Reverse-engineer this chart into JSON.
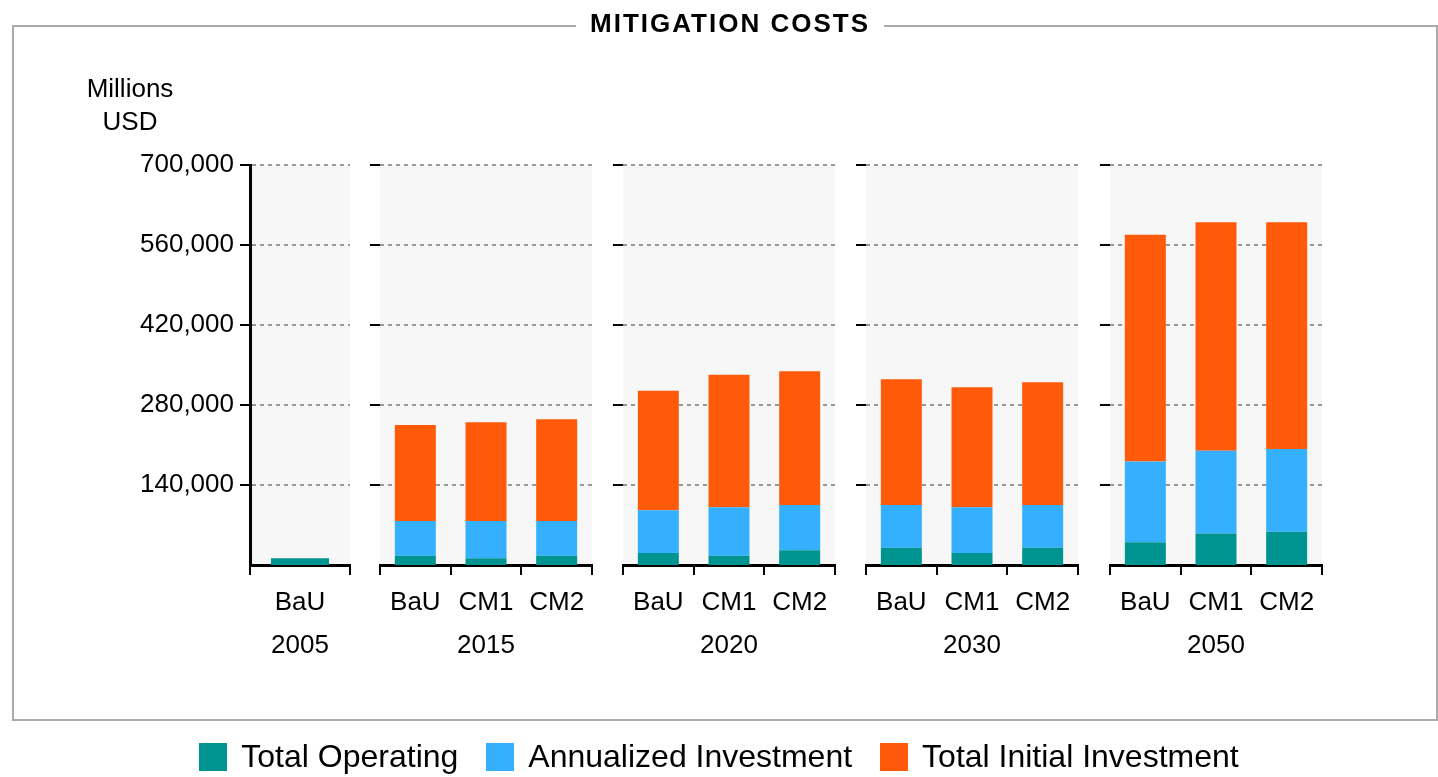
{
  "chart_data": [
    {
      "type": "bar",
      "ylabel": "Millions USD",
      "xlabel": "2005",
      "categories": [
        "BaU"
      ],
      "stacked": true,
      "ylim": [
        0,
        700000
      ],
      "yticks": [
        {
          "value": 140000,
          "label": "140,000"
        },
        {
          "value": 280000,
          "label": "280,000"
        },
        {
          "value": 420000,
          "label": "420,000"
        },
        {
          "value": 560000,
          "label": "560,000"
        },
        {
          "value": 700000,
          "label": "700,000"
        }
      ],
      "grid": "y",
      "legend": "bottom",
      "series": [
        {
          "name": "Total Operating",
          "color": "#009490",
          "values": [
            12000
          ]
        },
        {
          "name": "Annualized Investment",
          "color": "#35b0ff",
          "values": [
            null
          ]
        },
        {
          "name": "Total Initial Investment",
          "color": "#ff5a0a",
          "values": [
            null
          ]
        }
      ]
    },
    {
      "type": "bar",
      "xlabel": "2015",
      "categories": [
        "BaU",
        "CM1",
        "CM2"
      ],
      "stacked": true,
      "ylim": [
        0,
        700000
      ],
      "yticks": [
        {
          "value": 140000,
          "label": null
        },
        {
          "value": 280000,
          "label": null
        },
        {
          "value": 420000,
          "label": null
        },
        {
          "value": 560000,
          "label": null
        },
        {
          "value": 700000,
          "label": null
        }
      ],
      "grid": "y",
      "tick_labels": "x",
      "series": [
        {
          "color": "#009490",
          "values": [
            16000,
            12000,
            16000
          ]
        },
        {
          "color": "#35b0ff",
          "values": [
            61000,
            65000,
            61000
          ]
        },
        {
          "color": "#ff5a0a",
          "values": [
            168000,
            173000,
            178000
          ]
        }
      ]
    },
    {
      "type": "bar",
      "title": "MITIGATION COSTS",
      "xlabel": "2020",
      "categories": [
        "BaU",
        "CM1",
        "CM2"
      ],
      "stacked": true,
      "ylim": [
        0,
        700000
      ],
      "yticks": [
        {
          "value": 140000,
          "label": null
        },
        {
          "value": 280000,
          "label": null
        },
        {
          "value": 420000,
          "label": null
        },
        {
          "value": 560000,
          "label": null
        },
        {
          "value": 700000,
          "label": null
        }
      ],
      "grid": "y",
      "tick_labels": "x",
      "series": [
        {
          "color": "#009490",
          "values": [
            21000,
            16000,
            26000
          ]
        },
        {
          "color": "#35b0ff",
          "values": [
            75000,
            85000,
            79000
          ]
        },
        {
          "color": "#ff5a0a",
          "values": [
            209000,
            232000,
            234000
          ]
        }
      ]
    },
    {
      "type": "bar",
      "xlabel": "2030",
      "categories": [
        "BaU",
        "CM1",
        "CM2"
      ],
      "stacked": true,
      "ylim": [
        0,
        700000
      ],
      "yticks": [
        {
          "value": 140000,
          "label": null
        },
        {
          "value": 280000,
          "label": null
        },
        {
          "value": 420000,
          "label": null
        },
        {
          "value": 560000,
          "label": null
        },
        {
          "value": 700000,
          "label": null
        }
      ],
      "grid": "y",
      "tick_labels": "x",
      "series": [
        {
          "color": "#009490",
          "values": [
            30000,
            21000,
            30000
          ]
        },
        {
          "color": "#35b0ff",
          "values": [
            75000,
            80000,
            75000
          ]
        },
        {
          "color": "#ff5a0a",
          "values": [
            220000,
            210000,
            215000
          ]
        }
      ]
    },
    {
      "type": "bar",
      "xlabel": "2050",
      "categories": [
        "BaU",
        "CM1",
        "CM2"
      ],
      "stacked": true,
      "ylim": [
        0,
        700000
      ],
      "yticks": [
        {
          "value": 140000,
          "label": null
        },
        {
          "value": 280000,
          "label": null
        },
        {
          "value": 420000,
          "label": null
        },
        {
          "value": 560000,
          "label": null
        },
        {
          "value": 700000,
          "label": null
        }
      ],
      "grid": "y",
      "tick_labels": "x",
      "series": [
        {
          "color": "#009490",
          "values": [
            40000,
            55000,
            58000
          ]
        },
        {
          "color": "#35b0ff",
          "values": [
            141000,
            145000,
            145000
          ]
        },
        {
          "color": "#ff5a0a",
          "values": [
            397000,
            400000,
            397000
          ]
        }
      ]
    }
  ]
}
